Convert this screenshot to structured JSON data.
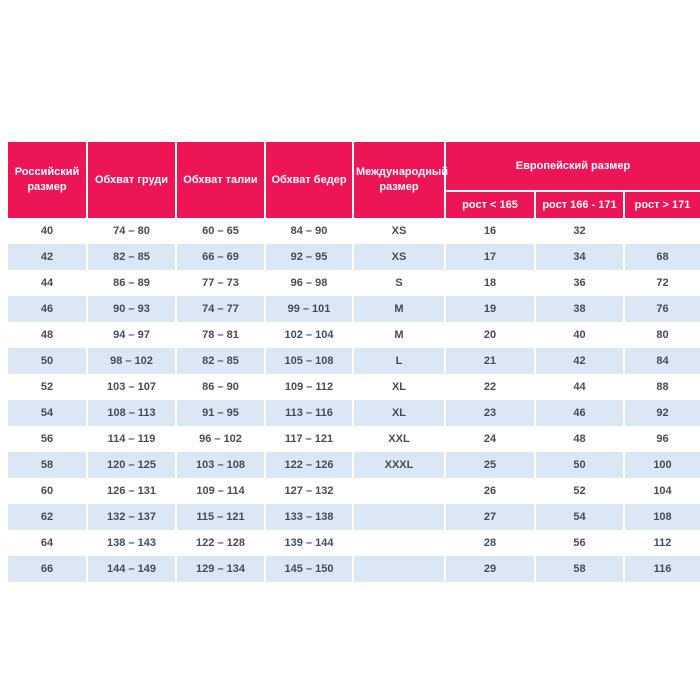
{
  "chart_data": {
    "type": "table",
    "title": "",
    "columns": [
      "Российский размер",
      "Обхват груди",
      "Обхват талии",
      "Обхват бедер",
      "Международный размер",
      "рост < 165",
      "рост 166 - 171",
      "рост > 171"
    ],
    "column_group": {
      "label": "Европейский размер",
      "covers": [
        "рост < 165",
        "рост 166 - 171",
        "рост > 171"
      ]
    },
    "rows": [
      [
        "40",
        "74 – 80",
        "60 – 65",
        "84 – 90",
        "XS",
        "16",
        "32",
        ""
      ],
      [
        "42",
        "82 – 85",
        "66 – 69",
        "92 – 95",
        "XS",
        "17",
        "34",
        "68"
      ],
      [
        "44",
        "86 – 89",
        "77 – 73",
        "96 – 98",
        "S",
        "18",
        "36",
        "72"
      ],
      [
        "46",
        "90 – 93",
        "74 – 77",
        "99 – 101",
        "M",
        "19",
        "38",
        "76"
      ],
      [
        "48",
        "94 – 97",
        "78 – 81",
        "102 – 104",
        "M",
        "20",
        "40",
        "80"
      ],
      [
        "50",
        "98 – 102",
        "82 – 85",
        "105 – 108",
        "L",
        "21",
        "42",
        "84"
      ],
      [
        "52",
        "103 – 107",
        "86 – 90",
        "109 – 112",
        "XL",
        "22",
        "44",
        "88"
      ],
      [
        "54",
        "108 – 113",
        "91 – 95",
        "113 – 116",
        "XL",
        "23",
        "46",
        "92"
      ],
      [
        "56",
        "114 – 119",
        "96 – 102",
        "117 – 121",
        "XXL",
        "24",
        "48",
        "96"
      ],
      [
        "58",
        "120 – 125",
        "103 – 108",
        "122 – 126",
        "XXXL",
        "25",
        "50",
        "100"
      ],
      [
        "60",
        "126 – 131",
        "109 – 114",
        "127 – 132",
        "",
        "26",
        "52",
        "104"
      ],
      [
        "62",
        "132 – 137",
        "115 – 121",
        "133 – 138",
        "",
        "27",
        "54",
        "108"
      ],
      [
        "64",
        "138 – 143",
        "122 – 128",
        "139 – 144",
        "",
        "28",
        "56",
        "112"
      ],
      [
        "66",
        "144 – 149",
        "129 – 134",
        "145 – 150",
        "",
        "29",
        "58",
        "116"
      ]
    ],
    "layout": {
      "grid": "off",
      "striped_rows": true
    }
  },
  "colors": {
    "header_bg": "#ee1557",
    "header_text": "#ffffff",
    "row_alt_bg": "#dbe7f5",
    "cell_text": "#454d57",
    "page_bg": "#ffffff"
  }
}
